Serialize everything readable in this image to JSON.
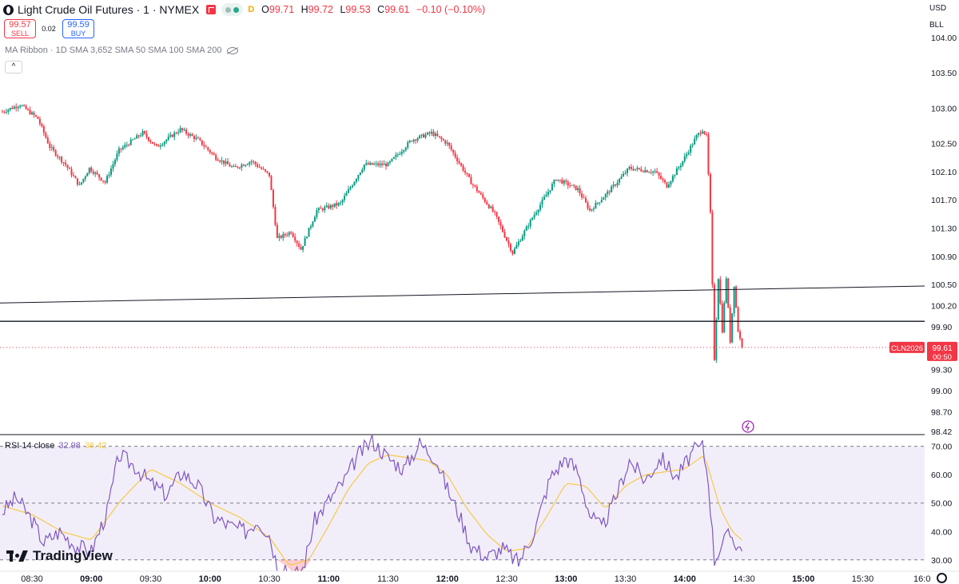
{
  "header": {
    "symbol_title": "Light Crude Oil Futures · 1 · NYMEX",
    "badge": "D",
    "ohlc": [
      {
        "k": "O",
        "v": "99.71"
      },
      {
        "k": "H",
        "v": "99.72"
      },
      {
        "k": "L",
        "v": "99.53"
      },
      {
        "k": "C",
        "v": "99.61"
      },
      {
        "k": "",
        "v": "−0.10 (−0.10%)"
      }
    ]
  },
  "trade": {
    "sell_price": "99.57",
    "sell_label": "SELL",
    "spread": "0.02",
    "buy_price": "99.59",
    "buy_label": "BUY"
  },
  "indicator_label": "MA Ribbon · 1D SMA 3,652 SMA 50 SMA 100 SMA 200",
  "collapse_glyph": "^",
  "rsi": {
    "label": "RSI 14 close",
    "value": "32.98",
    "ma_value": "36.42"
  },
  "axis": {
    "currency": "USD",
    "unit": "BLL"
  },
  "price_tag": {
    "symbol": "CLN2026",
    "price": "99.61",
    "countdown": "00:50"
  },
  "brand": "TradingView",
  "colors": {
    "up": "#089981",
    "down": "#f23645",
    "rsi": "#7e57c2",
    "rsi_ma": "#f7c948",
    "text": "#131722"
  },
  "chart_data": [
    {
      "type": "candlestick",
      "title": "Light Crude Oil Futures · 1 · NYMEX",
      "ylim": [
        98.42,
        104.0
      ],
      "y_ticks": [
        "104.00",
        "103.50",
        "103.00",
        "102.50",
        "102.10",
        "101.70",
        "101.30",
        "100.90",
        "100.50",
        "100.20",
        "99.90",
        "99.30",
        "99.00",
        "98.70",
        "98.42"
      ],
      "x_ticks": [
        "08:30",
        "09:00",
        "09:30",
        "10:00",
        "10:30",
        "11:00",
        "11:30",
        "12:00",
        "12:30",
        "13:00",
        "13:30",
        "14:00",
        "14:30",
        "15:00",
        "15:30",
        "16:0"
      ],
      "grid": false,
      "price_path": [
        [
          "08:15",
          102.95
        ],
        [
          "08:24",
          103.05
        ],
        [
          "08:33",
          102.85
        ],
        [
          "08:39",
          102.45
        ],
        [
          "08:47",
          102.2
        ],
        [
          "08:54",
          101.9
        ],
        [
          "08:59",
          102.15
        ],
        [
          "09:07",
          101.95
        ],
        [
          "09:14",
          102.4
        ],
        [
          "09:26",
          102.65
        ],
        [
          "09:33",
          102.45
        ],
        [
          "09:45",
          102.7
        ],
        [
          "09:54",
          102.55
        ],
        [
          "10:03",
          102.3
        ],
        [
          "10:12",
          102.15
        ],
        [
          "10:21",
          102.25
        ],
        [
          "10:30",
          102.05
        ],
        [
          "10:34",
          101.15
        ],
        [
          "10:41",
          101.25
        ],
        [
          "10:46",
          101.0
        ],
        [
          "10:54",
          101.55
        ],
        [
          "11:06",
          101.65
        ],
        [
          "11:18",
          102.2
        ],
        [
          "11:30",
          102.2
        ],
        [
          "11:42",
          102.55
        ],
        [
          "11:52",
          102.65
        ],
        [
          "12:00",
          102.5
        ],
        [
          "12:12",
          101.95
        ],
        [
          "12:24",
          101.5
        ],
        [
          "12:33",
          100.95
        ],
        [
          "12:43",
          101.45
        ],
        [
          "12:55",
          102.0
        ],
        [
          "13:06",
          101.85
        ],
        [
          "13:12",
          101.55
        ],
        [
          "13:21",
          101.8
        ],
        [
          "13:32",
          102.15
        ],
        [
          "13:45",
          102.1
        ],
        [
          "13:51",
          101.9
        ],
        [
          "13:59",
          102.25
        ],
        [
          "14:06",
          102.6
        ],
        [
          "14:09",
          102.7
        ],
        [
          "14:11",
          102.6
        ],
        [
          "14:13",
          101.5
        ],
        [
          "14:15",
          99.45
        ],
        [
          "14:17",
          100.6
        ],
        [
          "14:19",
          99.85
        ],
        [
          "14:21",
          100.6
        ],
        [
          "14:23",
          99.7
        ],
        [
          "14:25",
          100.5
        ],
        [
          "14:27",
          99.85
        ],
        [
          "14:29",
          99.61
        ]
      ],
      "horizontal_line": 99.98,
      "trend_line": [
        [
          "08:15",
          100.24
        ],
        [
          "16:02",
          100.48
        ]
      ],
      "last_price": 99.61
    },
    {
      "type": "line",
      "title": "RSI 14 close",
      "ylim": [
        26.0,
        73.0
      ],
      "y_ticks": [
        "70.00",
        "60.00",
        "50.00",
        "40.00",
        "30.00"
      ],
      "bands": [
        30,
        50,
        70
      ],
      "series": [
        {
          "values": [
            [
              "08:15",
              47
            ],
            [
              "08:22",
              52
            ],
            [
              "08:30",
              44
            ],
            [
              "08:36",
              36
            ],
            [
              "08:44",
              40
            ],
            [
              "08:52",
              35
            ],
            [
              "09:00",
              33
            ],
            [
              "09:08",
              47
            ],
            [
              "09:14",
              67
            ],
            [
              "09:22",
              63
            ],
            [
              "09:30",
              57
            ],
            [
              "09:38",
              53
            ],
            [
              "09:46",
              61
            ],
            [
              "09:54",
              56
            ],
            [
              "10:02",
              45
            ],
            [
              "10:10",
              42
            ],
            [
              "10:18",
              40
            ],
            [
              "10:24",
              44
            ],
            [
              "10:30",
              39
            ],
            [
              "10:34",
              28
            ],
            [
              "10:38",
              28
            ],
            [
              "10:42",
              24
            ],
            [
              "10:47",
              27
            ],
            [
              "10:53",
              44
            ],
            [
              "11:00",
              51
            ],
            [
              "11:08",
              58
            ],
            [
              "11:15",
              67
            ],
            [
              "11:22",
              72
            ],
            [
              "11:30",
              66
            ],
            [
              "11:38",
              62
            ],
            [
              "11:46",
              71
            ],
            [
              "11:54",
              66
            ],
            [
              "12:00",
              55
            ],
            [
              "12:06",
              46
            ],
            [
              "12:12",
              35
            ],
            [
              "12:20",
              31
            ],
            [
              "12:28",
              34
            ],
            [
              "12:36",
              29
            ],
            [
              "12:44",
              40
            ],
            [
              "12:52",
              59
            ],
            [
              "13:00",
              66
            ],
            [
              "13:06",
              61
            ],
            [
              "13:12",
              46
            ],
            [
              "13:18",
              41
            ],
            [
              "13:24",
              50
            ],
            [
              "13:32",
              65
            ],
            [
              "13:40",
              58
            ],
            [
              "13:48",
              66
            ],
            [
              "13:56",
              59
            ],
            [
              "14:04",
              68
            ],
            [
              "14:09",
              70
            ],
            [
              "14:12",
              58
            ],
            [
              "14:15",
              30
            ],
            [
              "14:19",
              36
            ],
            [
              "14:23",
              39
            ],
            [
              "14:27",
              35
            ],
            [
              "14:29",
              33
            ]
          ]
        },
        {
          "values": [
            [
              "08:15",
              49
            ],
            [
              "08:30",
              46
            ],
            [
              "08:45",
              40
            ],
            [
              "09:00",
              37
            ],
            [
              "09:15",
              51
            ],
            [
              "09:30",
              62
            ],
            [
              "09:45",
              57
            ],
            [
              "10:00",
              50
            ],
            [
              "10:15",
              45
            ],
            [
              "10:30",
              38
            ],
            [
              "10:40",
              28
            ],
            [
              "10:50",
              30
            ],
            [
              "11:00",
              42
            ],
            [
              "11:10",
              55
            ],
            [
              "11:20",
              64
            ],
            [
              "11:30",
              67
            ],
            [
              "11:40",
              66
            ],
            [
              "11:50",
              65
            ],
            [
              "12:00",
              60
            ],
            [
              "12:10",
              48
            ],
            [
              "12:20",
              39
            ],
            [
              "12:30",
              33
            ],
            [
              "12:40",
              34
            ],
            [
              "12:50",
              45
            ],
            [
              "13:00",
              57
            ],
            [
              "13:10",
              56
            ],
            [
              "13:20",
              48
            ],
            [
              "13:30",
              56
            ],
            [
              "13:40",
              60
            ],
            [
              "13:50",
              61
            ],
            [
              "14:00",
              62
            ],
            [
              "14:10",
              67
            ],
            [
              "14:18",
              48
            ],
            [
              "14:24",
              40
            ],
            [
              "14:29",
              37
            ]
          ]
        }
      ]
    }
  ]
}
